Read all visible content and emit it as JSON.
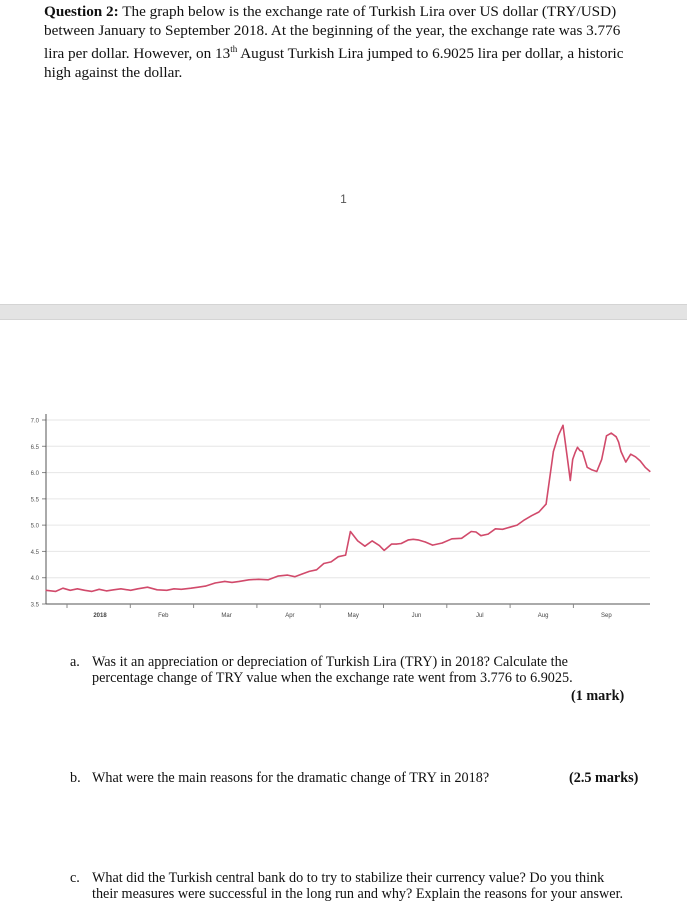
{
  "question": {
    "label": "Question 2:",
    "text": "The graph below is the exchange rate of Turkish Lira over US dollar (TRY/USD) between January to September 2018. At the beginning of the year, the exchange rate was 3.776 lira per dollar. However, on 13",
    "sup": "th",
    "text_end": " August Turkish Lira jumped to 6.9025 lira per dollar, a historic high against the dollar."
  },
  "page_number": "1",
  "chart_data": {
    "type": "line",
    "title": "",
    "xlabel": "",
    "ylabel": "",
    "x_tick_labels": [
      "2018",
      "Feb",
      "Mar",
      "Apr",
      "May",
      "Jun",
      "Jul",
      "Aug",
      "Sep"
    ],
    "y_tick_labels": [
      "3.5",
      "4.0",
      "4.5",
      "5.0",
      "5.5",
      "6.0",
      "6.5",
      "7.0"
    ],
    "ylim": [
      3.5,
      7.0
    ],
    "xlim": [
      0,
      250
    ],
    "grid": true,
    "line_color": "#d14a6b",
    "series": [
      {
        "x": [
          0,
          4,
          7,
          10,
          13,
          16,
          19,
          22,
          25,
          28,
          31,
          35,
          38,
          42,
          46,
          50,
          53,
          56,
          60,
          63,
          66,
          70,
          74,
          77,
          80,
          84,
          88,
          92,
          96,
          100,
          103,
          106,
          109,
          112,
          115,
          118,
          121,
          124,
          126,
          129,
          132,
          135,
          138,
          140,
          143,
          145,
          147,
          150,
          152,
          154,
          157,
          160,
          164,
          168,
          172,
          176,
          178,
          180,
          183,
          186,
          189,
          192,
          195,
          198,
          201,
          204,
          207,
          210,
          212,
          214,
          216,
          217,
          218,
          219,
          220,
          221,
          222,
          224,
          226,
          228,
          230,
          232,
          234,
          236,
          237,
          238,
          240,
          242,
          244,
          246,
          248,
          250
        ],
        "values": [
          3.76,
          3.74,
          3.8,
          3.76,
          3.79,
          3.76,
          3.74,
          3.78,
          3.75,
          3.77,
          3.79,
          3.76,
          3.79,
          3.82,
          3.77,
          3.76,
          3.79,
          3.78,
          3.8,
          3.82,
          3.84,
          3.9,
          3.93,
          3.91,
          3.93,
          3.96,
          3.97,
          3.96,
          4.03,
          4.05,
          4.02,
          4.07,
          4.12,
          4.15,
          4.27,
          4.3,
          4.4,
          4.43,
          4.88,
          4.7,
          4.6,
          4.7,
          4.61,
          4.52,
          4.64,
          4.64,
          4.65,
          4.72,
          4.73,
          4.72,
          4.68,
          4.62,
          4.66,
          4.74,
          4.75,
          4.88,
          4.87,
          4.8,
          4.83,
          4.93,
          4.92,
          4.96,
          5.0,
          5.1,
          5.18,
          5.25,
          5.4,
          6.4,
          6.7,
          6.9,
          6.2,
          5.85,
          6.25,
          6.38,
          6.48,
          6.42,
          6.4,
          6.1,
          6.05,
          6.02,
          6.25,
          6.7,
          6.75,
          6.68,
          6.58,
          6.4,
          6.2,
          6.35,
          6.3,
          6.22,
          6.1,
          6.02
        ]
      }
    ]
  },
  "sub_questions": [
    {
      "letter": "a.",
      "line1": "Was it an appreciation or depreciation of Turkish Lira (TRY) in 2018? Calculate the",
      "line2": "percentage change of TRY value when the exchange rate went from 3.776 to 6.9025.",
      "marks": "(1 mark)"
    },
    {
      "letter": "b.",
      "line1": "What were the main reasons for the dramatic change of TRY in 2018?",
      "marks": "(2.5 marks)"
    },
    {
      "letter": "c.",
      "line1": "What did the Turkish central bank do to try to stabilize their currency value? Do you think",
      "line2": "their measures were successful in the long run and why? Explain the reasons for your answer."
    }
  ]
}
